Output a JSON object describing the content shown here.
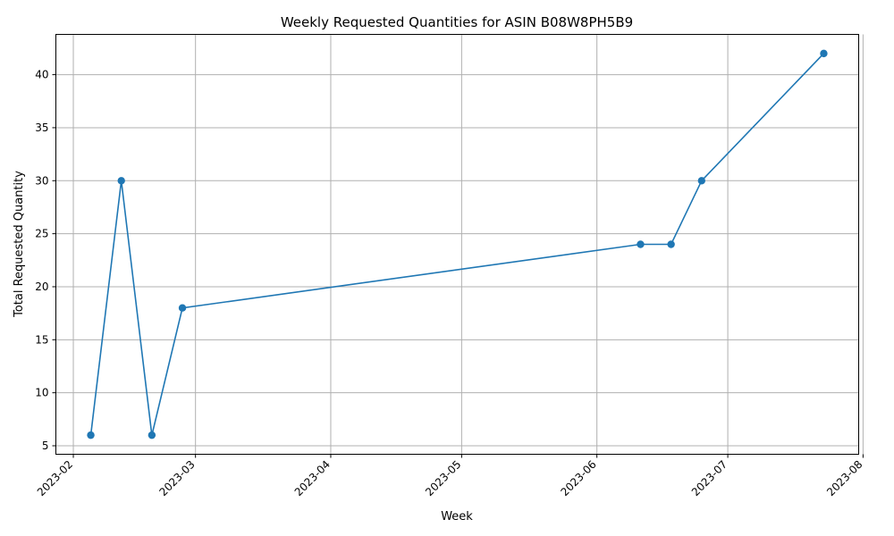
{
  "chart_data": {
    "type": "line",
    "title": "Weekly Requested Quantities for ASIN B08W8PH5B9",
    "xlabel": "Week",
    "ylabel": "Total Requested Quantity",
    "x_type": "date",
    "x": [
      "2023-02-05",
      "2023-02-12",
      "2023-02-19",
      "2023-02-26",
      "2023-06-11",
      "2023-06-18",
      "2023-06-25",
      "2023-07-23"
    ],
    "values": [
      6,
      30,
      6,
      18,
      24,
      24,
      30,
      42
    ],
    "xlim": [
      "2023-01-28",
      "2023-07-31"
    ],
    "ylim": [
      4.2,
      43.8
    ],
    "x_ticks": [
      "2023-02-01",
      "2023-03-01",
      "2023-04-01",
      "2023-05-01",
      "2023-06-01",
      "2023-07-01",
      "2023-08-01"
    ],
    "x_tick_labels": [
      "2023-02",
      "2023-03",
      "2023-04",
      "2023-05",
      "2023-06",
      "2023-07",
      "2023-08"
    ],
    "y_ticks": [
      5,
      10,
      15,
      20,
      25,
      30,
      35,
      40
    ],
    "y_tick_labels": [
      "5",
      "10",
      "15",
      "20",
      "25",
      "30",
      "35",
      "40"
    ],
    "grid": true,
    "line_color": "#1f77b4",
    "marker": "circle"
  }
}
